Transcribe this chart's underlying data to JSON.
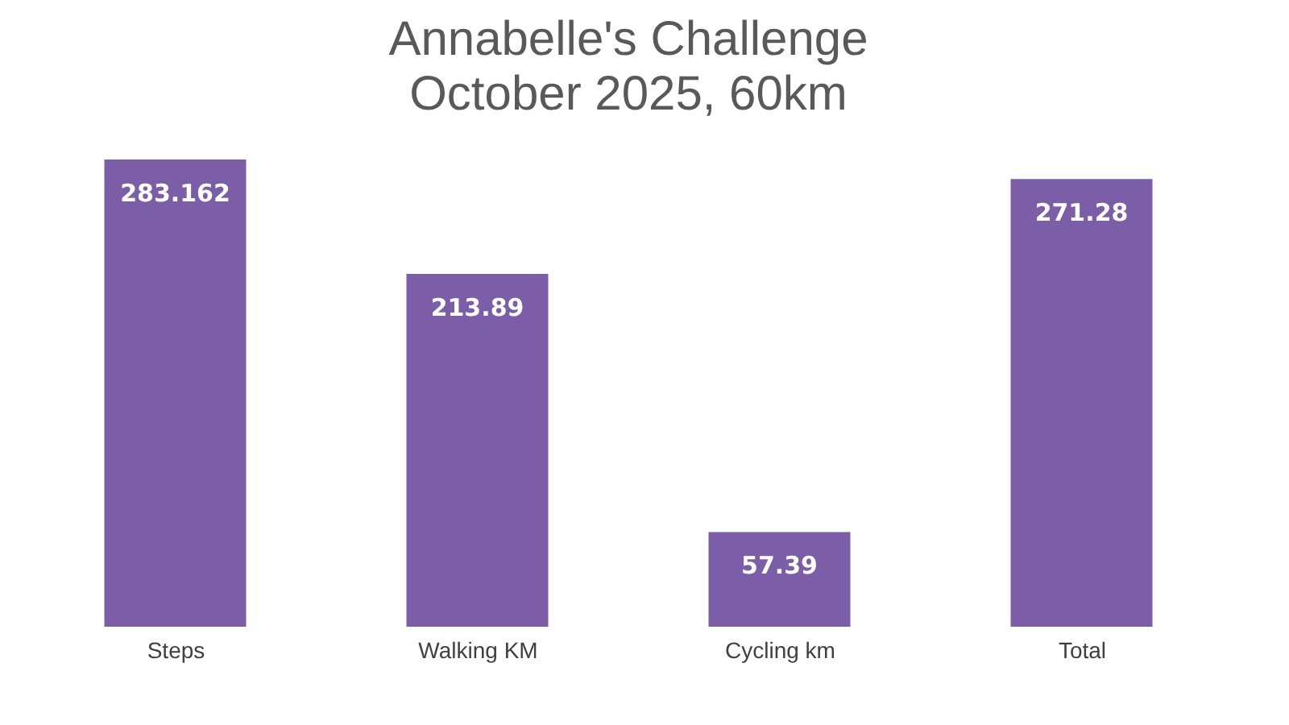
{
  "chart_data": {
    "type": "bar",
    "title": "Annabelle's Challenge",
    "subtitle": "October 2025, 60km",
    "categories": [
      "Steps",
      "Walking KM",
      "Cycling km",
      "Total"
    ],
    "values": [
      283.162,
      213.89,
      57.39,
      271.28
    ],
    "color": "#7b5ea7",
    "data_labels": true,
    "grid": false
  }
}
